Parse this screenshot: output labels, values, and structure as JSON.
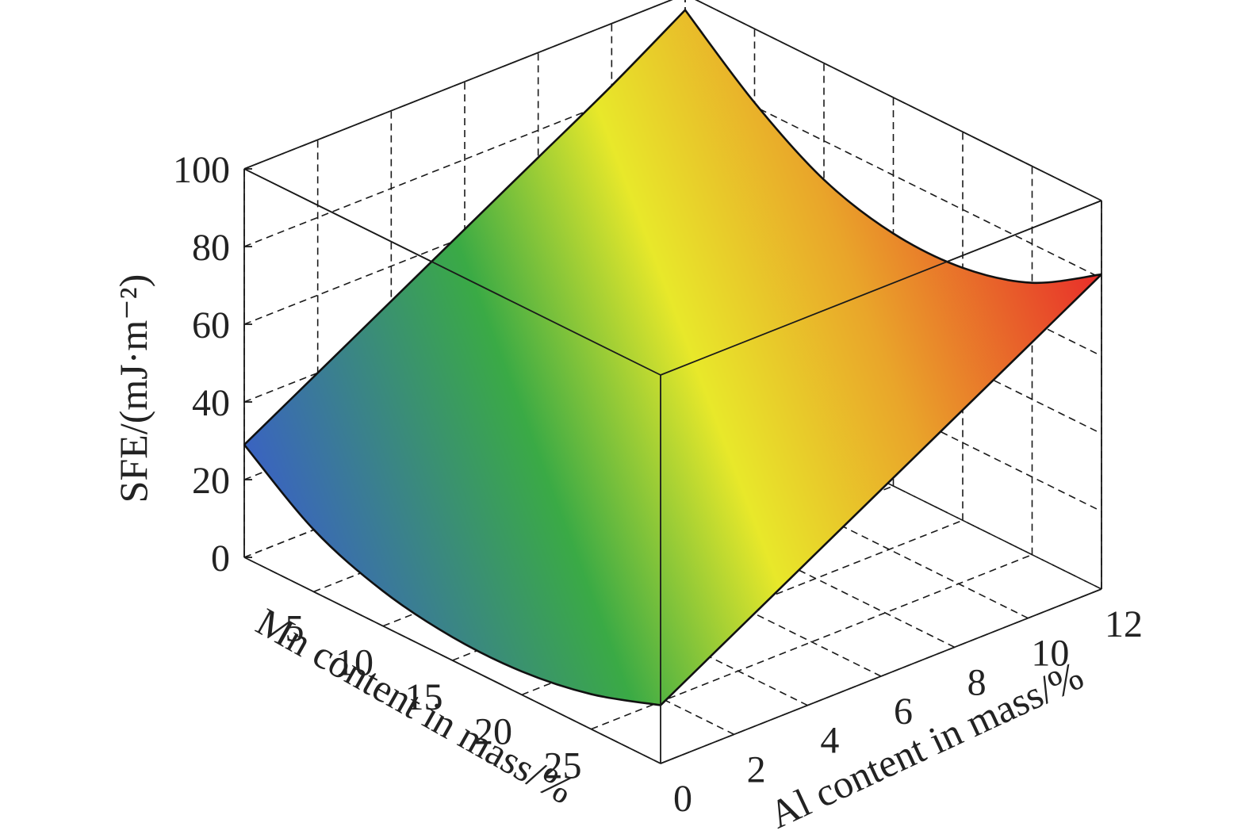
{
  "chart_data": {
    "type": "surface",
    "title": "",
    "zlabel": "SFE/(mJ·m⁻²)",
    "xlabel": "Al content in mass/%",
    "ylabel": "Mn content in mass/%",
    "z_ticks": [
      "0",
      "20",
      "40",
      "60",
      "80",
      "100"
    ],
    "mn_ticks": [
      "5",
      "10",
      "15",
      "20",
      "25"
    ],
    "al_ticks": [
      "0",
      "2",
      "4",
      "6",
      "8",
      "10",
      "12"
    ],
    "xlim": [
      0,
      12
    ],
    "ylim": [
      0,
      30
    ],
    "zlim": [
      0,
      100
    ],
    "surface_edges": {
      "al_0": {
        "mn": [
          0,
          5,
          10,
          15,
          20,
          25,
          30
        ],
        "sfe": [
          29,
          16,
          9,
          6,
          6,
          9,
          15
        ]
      },
      "al_12": {
        "mn": [
          0,
          5,
          10,
          15,
          20,
          25,
          30
        ],
        "sfe": [
          96,
          81,
          70,
          65,
          65,
          70,
          81
        ]
      },
      "mn_0": {
        "al": [
          0,
          2,
          4,
          6,
          8,
          10,
          12
        ],
        "sfe": [
          29,
          40,
          51,
          62,
          73,
          84,
          96
        ]
      },
      "mn_30": {
        "al": [
          0,
          2,
          4,
          6,
          8,
          10,
          12
        ],
        "sfe": [
          15,
          26,
          37,
          48,
          59,
          70,
          81
        ]
      }
    },
    "colormap": [
      "#3a5fc8",
      "#3aaa45",
      "#e8e82a",
      "#e9a52a",
      "#e8242a"
    ],
    "grid": true
  }
}
